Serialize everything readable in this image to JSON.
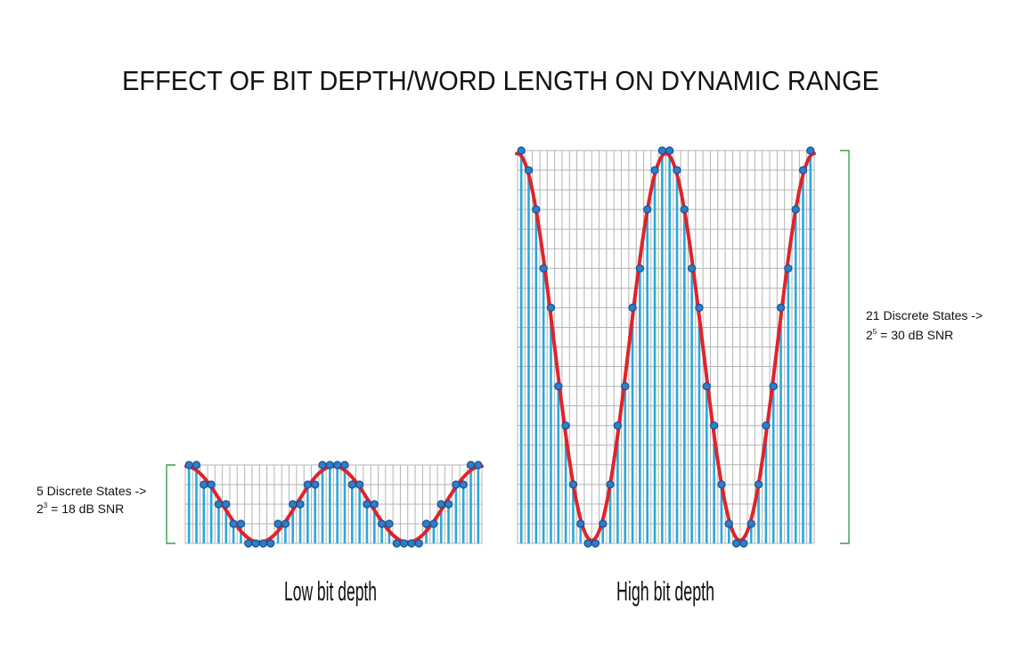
{
  "title": "EFFECT OF BIT DEPTH/WORD LENGTH ON DYNAMIC RANGE",
  "colors": {
    "bar": "#29a8dc",
    "grid": "#b4b4b4",
    "wave": "#e0232a",
    "sample_fill": "#2d7fc8",
    "sample_stroke": "#1b4f8f",
    "bracket": "#3aa046",
    "text": "#111111"
  },
  "panels": [
    {
      "caption": "Low bit depth",
      "levels": 5,
      "samples": 40,
      "cycles": 2,
      "annotation": {
        "line1": "5 Discrete States ->",
        "line2_base": "2",
        "line2_exp": "3",
        "line2_rest": " = 18 dB SNR"
      }
    },
    {
      "caption": "High bit depth",
      "levels": 21,
      "samples": 40,
      "cycles": 2,
      "annotation": {
        "line1": "21 Discrete States ->",
        "line2_base": "2",
        "line2_exp": "5",
        "line2_rest": " = 30 dB SNR"
      }
    }
  ]
}
